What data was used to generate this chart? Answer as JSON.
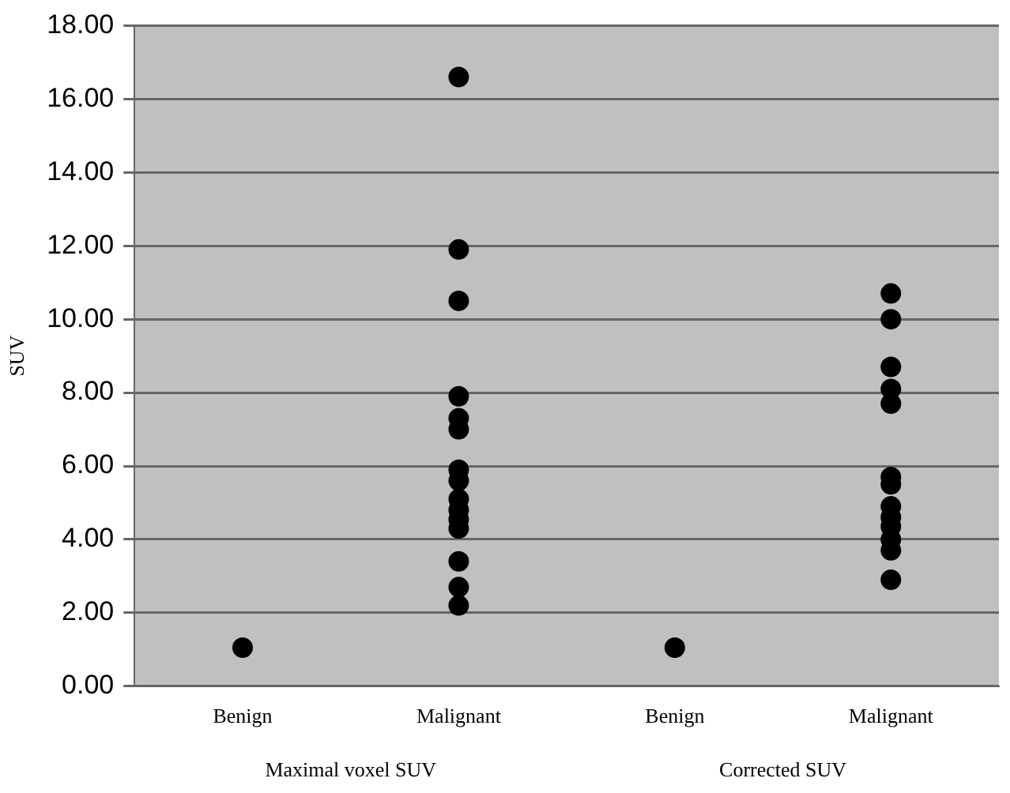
{
  "chart_data": {
    "type": "scatter",
    "ylabel": "SUV",
    "categories": [
      "Benign",
      "Malignant",
      "Benign",
      "Malignant"
    ],
    "annotations": [
      "Maximal voxel SUV",
      "Corrected SUV"
    ],
    "color": "#000000",
    "marker": "circle",
    "grid": "y",
    "legend": false,
    "ylim": [
      0,
      18
    ],
    "yticks": [
      {
        "value": 0,
        "label": "0.00"
      },
      {
        "value": 2,
        "label": "2.00"
      },
      {
        "value": 4,
        "label": "4.00"
      },
      {
        "value": 6,
        "label": "6.00"
      },
      {
        "value": 8,
        "label": "8.00"
      },
      {
        "value": 10,
        "label": "10.00"
      },
      {
        "value": 12,
        "label": "12.00"
      },
      {
        "value": 14,
        "label": "14.00"
      },
      {
        "value": 16,
        "label": "16.00"
      },
      {
        "value": 18,
        "label": "18.00"
      }
    ],
    "series": [
      {
        "values": [
          1.05,
          16.6,
          1.05,
          10.7
        ]
      },
      {
        "values": [
          null,
          11.9,
          null,
          10.0
        ]
      },
      {
        "values": [
          null,
          10.5,
          null,
          8.7
        ]
      },
      {
        "values": [
          null,
          7.9,
          null,
          8.1
        ]
      },
      {
        "values": [
          null,
          7.3,
          null,
          7.7
        ]
      },
      {
        "values": [
          null,
          7.0,
          null,
          5.7
        ]
      },
      {
        "values": [
          null,
          5.9,
          null,
          5.5
        ]
      },
      {
        "values": [
          null,
          5.6,
          null,
          4.9
        ]
      },
      {
        "values": [
          null,
          5.1,
          null,
          4.6
        ]
      },
      {
        "values": [
          null,
          4.8,
          null,
          4.35
        ]
      },
      {
        "values": [
          null,
          4.55,
          null,
          4.0
        ]
      },
      {
        "values": [
          null,
          4.3,
          null,
          3.7
        ]
      },
      {
        "values": [
          null,
          3.4,
          null,
          2.9
        ]
      },
      {
        "values": [
          null,
          2.7,
          null,
          null
        ]
      },
      {
        "values": [
          null,
          2.2,
          null,
          null
        ]
      }
    ]
  }
}
